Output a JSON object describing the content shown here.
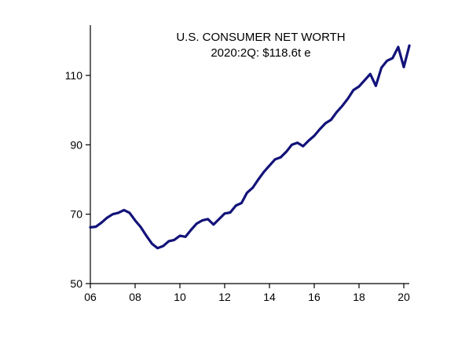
{
  "chart_data": {
    "type": "line",
    "title": "U.S. CONSUMER NET WORTH",
    "subtitle": "2020:2Q: $118.6t e",
    "xlim": [
      2006,
      2021
    ],
    "ylim": [
      50,
      125
    ],
    "x_ticks": [
      2006,
      2008,
      2010,
      2012,
      2014,
      2016,
      2018,
      2020
    ],
    "x_tick_labels": [
      "06",
      "08",
      "10",
      "12",
      "14",
      "16",
      "18",
      "20"
    ],
    "y_ticks": [
      50,
      70,
      90,
      110
    ],
    "y_tick_labels": [
      "50",
      "70",
      "90",
      "110"
    ],
    "grid": false,
    "colors": {
      "series": "#13137a",
      "axis": "#000000"
    },
    "series": [
      {
        "x": [
          2006.0,
          2006.25,
          2006.5,
          2006.75,
          2007.0,
          2007.25,
          2007.5,
          2007.75,
          2008.0,
          2008.25,
          2008.5,
          2008.75,
          2009.0,
          2009.25,
          2009.5,
          2009.75,
          2010.0,
          2010.25,
          2010.5,
          2010.75,
          2011.0,
          2011.25,
          2011.5,
          2011.75,
          2012.0,
          2012.25,
          2012.5,
          2012.75,
          2013.0,
          2013.25,
          2013.5,
          2013.75,
          2014.0,
          2014.25,
          2014.5,
          2014.75,
          2015.0,
          2015.25,
          2015.5,
          2015.75,
          2016.0,
          2016.25,
          2016.5,
          2016.75,
          2017.0,
          2017.25,
          2017.5,
          2017.75,
          2018.0,
          2018.25,
          2018.5,
          2018.75,
          2019.0,
          2019.25,
          2019.5,
          2019.75,
          2020.0,
          2020.25
        ],
        "values": [
          66.2,
          66.4,
          67.6,
          69.0,
          70.0,
          70.4,
          71.2,
          70.4,
          68.2,
          66.3,
          63.8,
          61.5,
          60.2,
          60.8,
          62.2,
          62.6,
          63.8,
          63.5,
          65.5,
          67.3,
          68.2,
          68.6,
          67.0,
          68.6,
          70.2,
          70.5,
          72.5,
          73.2,
          76.2,
          77.6,
          80.0,
          82.2,
          84.0,
          85.8,
          86.4,
          88.0,
          90.0,
          90.6,
          89.6,
          91.2,
          92.6,
          94.5,
          96.2,
          97.2,
          99.4,
          101.2,
          103.3,
          105.8,
          106.8,
          108.6,
          110.4,
          107.0,
          112.2,
          114.2,
          115.0,
          118.2,
          112.4,
          118.6
        ]
      }
    ]
  }
}
